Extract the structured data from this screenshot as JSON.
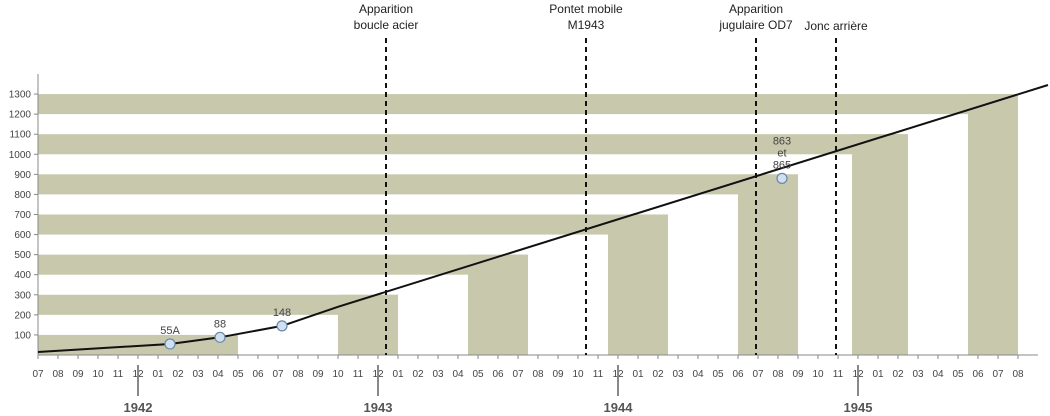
{
  "chart_data": {
    "type": "line",
    "colors": {
      "band": "#c8c8ad",
      "line": "#111111",
      "marker_fill": "#cfe0f0",
      "marker_stroke": "#6a88a6",
      "axis": "#888888",
      "text": "#444444"
    },
    "x_months": [
      "07",
      "08",
      "09",
      "10",
      "11",
      "12",
      "01",
      "02",
      "03",
      "04",
      "05",
      "06",
      "07",
      "08",
      "09",
      "10",
      "11",
      "12",
      "01",
      "02",
      "03",
      "04",
      "05",
      "06",
      "07",
      "08",
      "09",
      "10",
      "11",
      "12",
      "01",
      "02",
      "03",
      "04",
      "05",
      "06",
      "07",
      "08",
      "09",
      "10",
      "11",
      "12",
      "01",
      "02",
      "03",
      "04",
      "05",
      "06",
      "07",
      "08"
    ],
    "years": [
      {
        "label": "1942",
        "month_index": 5.5
      },
      {
        "label": "1943",
        "month_index": 17.5
      },
      {
        "label": "1944",
        "month_index": 29.5
      },
      {
        "label": "1945",
        "month_index": 41.5
      }
    ],
    "yticks": [
      100,
      200,
      300,
      400,
      500,
      600,
      700,
      800,
      900,
      1000,
      1100,
      1200,
      1300
    ],
    "ylim": [
      0,
      1380
    ],
    "bands": [
      {
        "from_value": 0,
        "to_value": 100,
        "end_month": 10
      },
      {
        "from_value": 200,
        "to_value": 300,
        "start_month": 15,
        "end_month": 18
      },
      {
        "from_value": 400,
        "to_value": 500,
        "start_month": 21.5,
        "end_month": 24.5
      },
      {
        "from_value": 600,
        "to_value": 700,
        "start_month": 28.5,
        "end_month": 31.5
      },
      {
        "from_value": 800,
        "to_value": 900,
        "start_month": 35,
        "end_month": 38
      },
      {
        "from_value": 1000,
        "to_value": 1100,
        "start_month": 40.7,
        "end_month": 43.5
      },
      {
        "from_value": 1200,
        "to_value": 1300,
        "start_month": 46.5,
        "end_month": 49
      }
    ],
    "line": [
      {
        "month_index": 0,
        "value": 15
      },
      {
        "month_index": 6.6,
        "value": 55
      },
      {
        "month_index": 9.1,
        "value": 88
      },
      {
        "month_index": 12.2,
        "value": 145
      },
      {
        "month_index": 15,
        "value": 240
      },
      {
        "month_index": 50.5,
        "value": 1345
      }
    ],
    "points": [
      {
        "month_index": 6.6,
        "value": 55,
        "label": "55A"
      },
      {
        "month_index": 9.1,
        "value": 88,
        "label": "88"
      },
      {
        "month_index": 12.2,
        "value": 145,
        "label": "148"
      },
      {
        "month_index": 37.2,
        "value": 880,
        "label_lines": [
          "863",
          "et",
          "865"
        ]
      }
    ],
    "events": [
      {
        "month_index": 17.4,
        "label_lines": [
          "Apparition",
          "boucle acier"
        ]
      },
      {
        "month_index": 27.4,
        "label_lines": [
          "Pontet mobile",
          "M1943"
        ]
      },
      {
        "month_index": 35.9,
        "label_lines": [
          "Apparition",
          "jugulaire OD7"
        ]
      },
      {
        "month_index": 39.9,
        "label_lines": [
          "Jonc arrière"
        ]
      }
    ]
  }
}
